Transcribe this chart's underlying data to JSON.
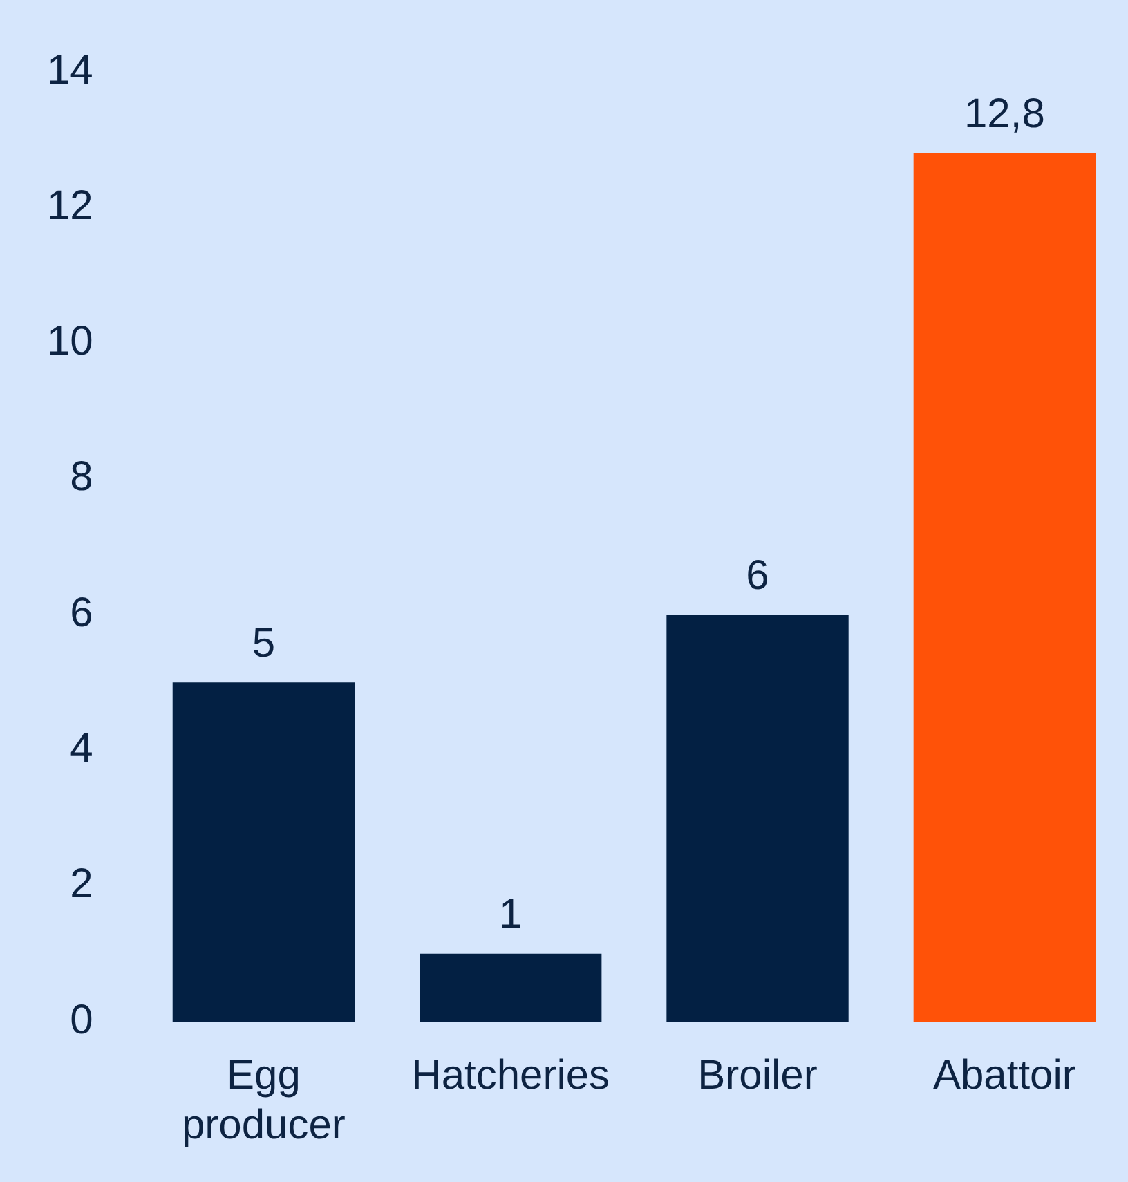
{
  "chart_data": {
    "type": "bar",
    "categories": [
      "Egg producer",
      "Hatcheries",
      "Broiler",
      "Abattoir"
    ],
    "values": [
      5,
      1,
      6,
      12.8
    ],
    "colors": [
      "#032043",
      "#032043",
      "#032043",
      "#ff5208"
    ],
    "value_labels": [
      "5",
      "1",
      "6",
      "12,8"
    ],
    "ylim": [
      0,
      14
    ],
    "yticks": [
      0,
      2,
      4,
      6,
      8,
      10,
      12,
      14
    ],
    "grid": false,
    "legend": false
  }
}
